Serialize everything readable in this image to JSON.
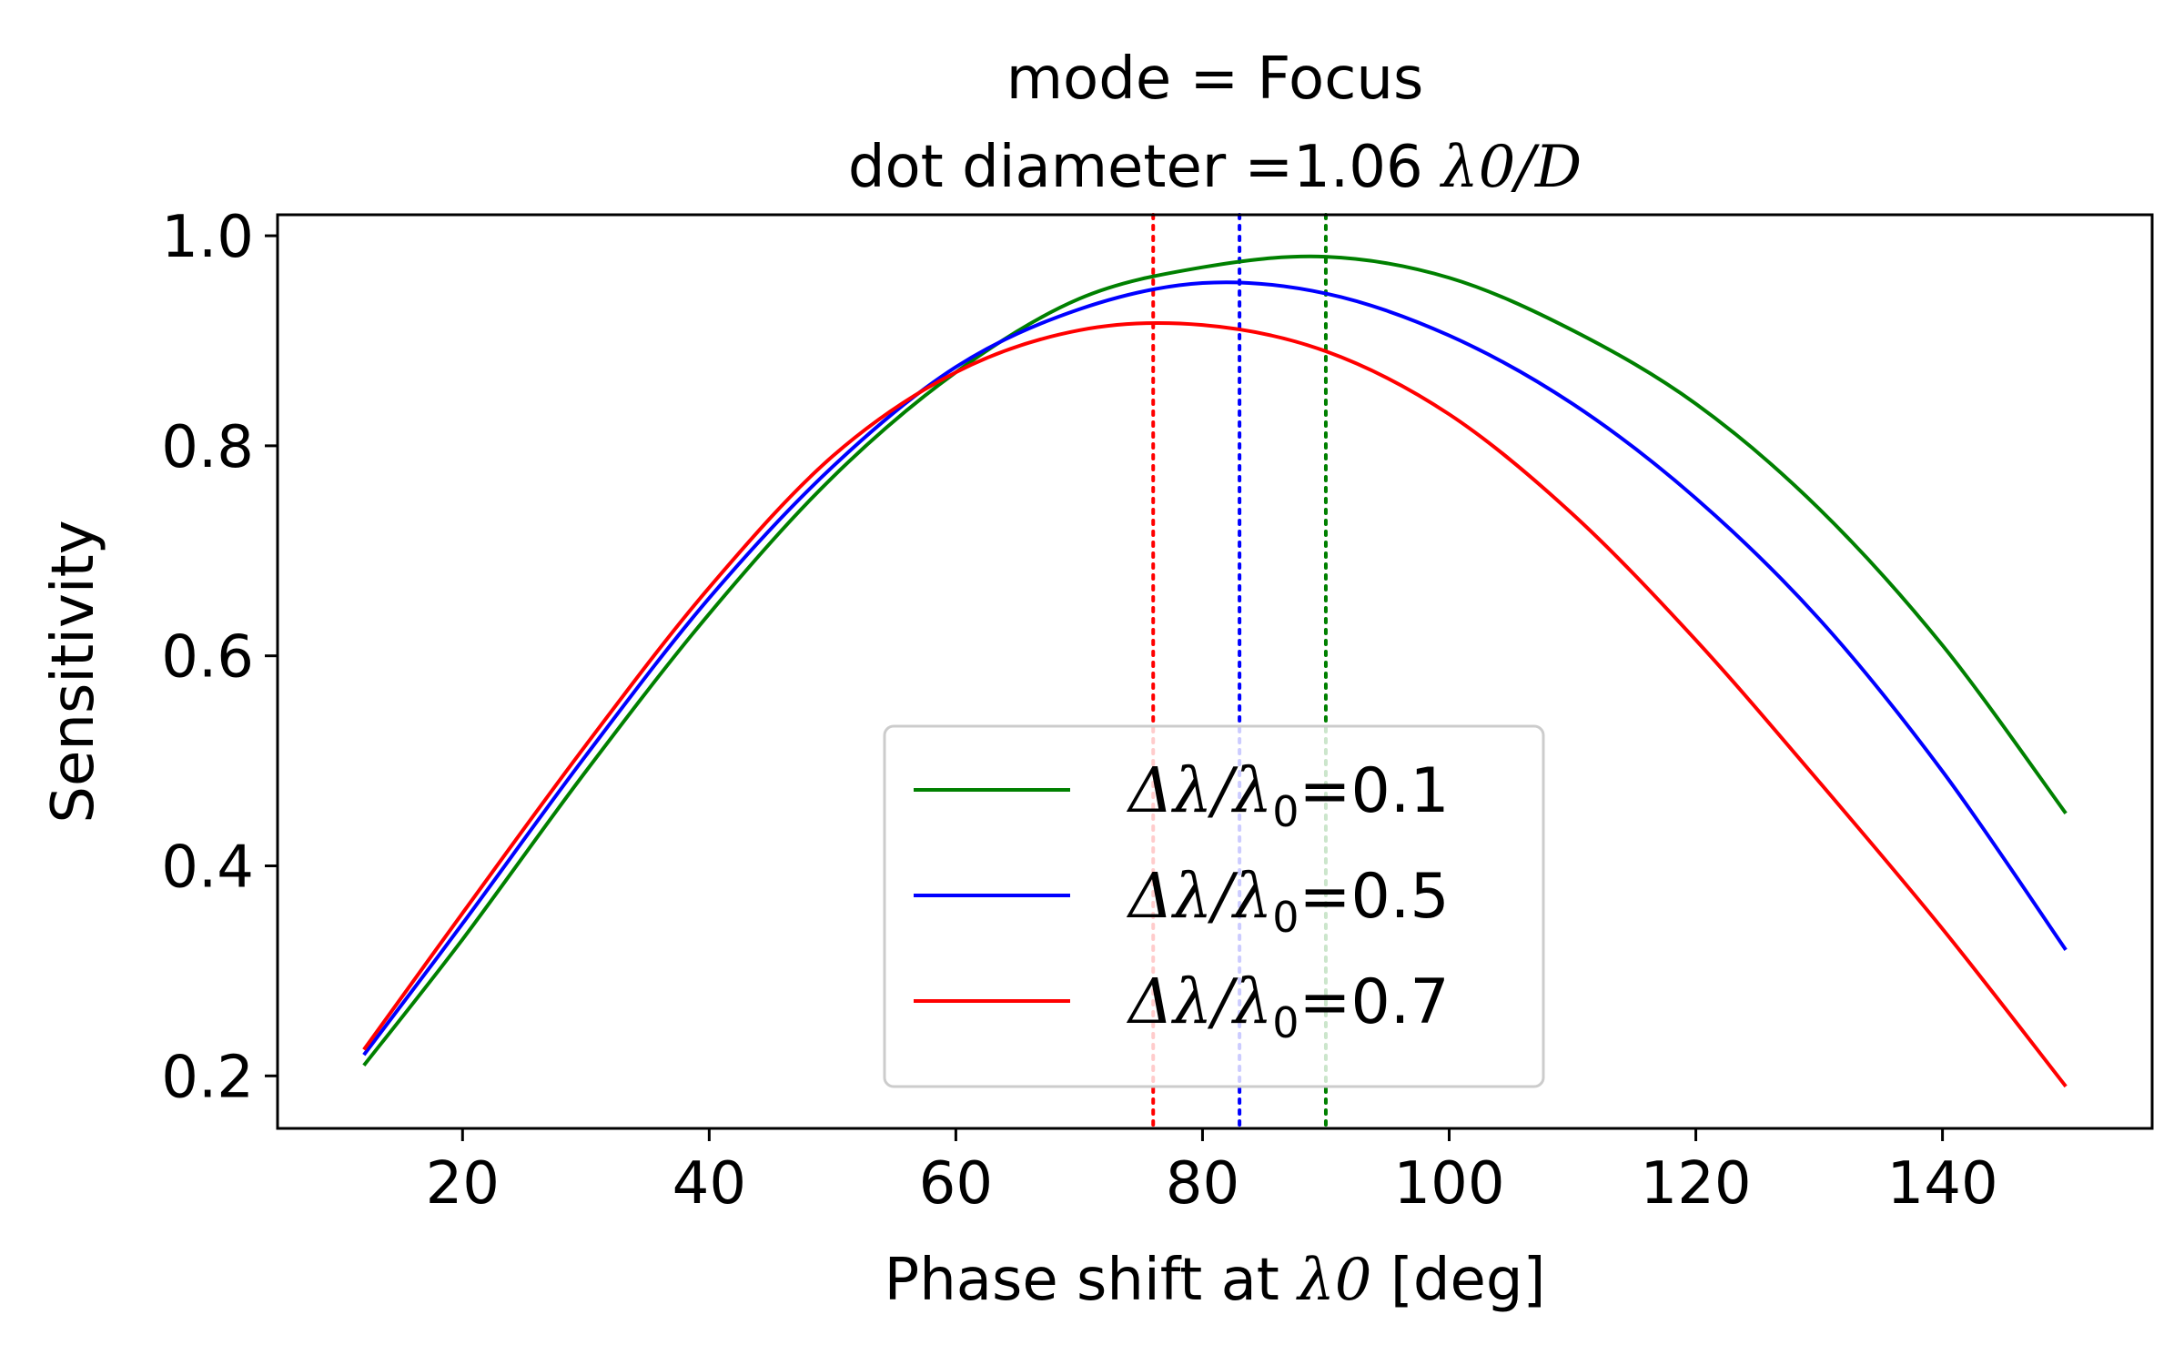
{
  "chart_data": {
    "type": "line",
    "title_line1": "mode = Focus",
    "title_line2_prefix": "dot diameter =1.06 ",
    "title_line2_math": "λ0/D",
    "xlabel_prefix": "Phase shift at ",
    "xlabel_math": "λ0",
    "xlabel_suffix": " [deg]",
    "ylabel": "Sensitivity",
    "xlim": [
      5,
      157
    ],
    "ylim": [
      0.15,
      1.02
    ],
    "xticks": [
      20,
      40,
      60,
      80,
      100,
      120,
      140
    ],
    "xtick_labels": [
      "20",
      "40",
      "60",
      "80",
      "100",
      "120",
      "140"
    ],
    "yticks": [
      0.2,
      0.4,
      0.6,
      0.8,
      1.0
    ],
    "ytick_labels": [
      "0.2",
      "0.4",
      "0.6",
      "0.8",
      "1.0"
    ],
    "grid": false,
    "legend_placement": "lower-center",
    "series": [
      {
        "name": "Δλ/λ0=0.1",
        "label_prefix": "Δλ/λ",
        "label_sub": "0",
        "label_suffix": "=0.1",
        "color": "#008000",
        "peak_x": 90,
        "x": [
          12,
          20,
          30,
          40,
          50,
          60,
          70,
          80,
          90,
          100,
          110,
          120,
          130,
          140,
          150
        ],
        "y": [
          0.21,
          0.33,
          0.49,
          0.64,
          0.77,
          0.87,
          0.94,
          0.97,
          0.98,
          0.96,
          0.91,
          0.84,
          0.74,
          0.61,
          0.45
        ]
      },
      {
        "name": "Δλ/λ0=0.5",
        "label_prefix": "Δλ/λ",
        "label_sub": "0",
        "label_suffix": "=0.5",
        "color": "#0000ff",
        "peak_x": 83,
        "x": [
          12,
          20,
          30,
          40,
          50,
          60,
          70,
          80,
          90,
          100,
          110,
          120,
          130,
          140,
          150
        ],
        "y": [
          0.22,
          0.345,
          0.505,
          0.655,
          0.78,
          0.875,
          0.93,
          0.955,
          0.945,
          0.905,
          0.84,
          0.75,
          0.635,
          0.49,
          0.32
        ]
      },
      {
        "name": "Δλ/λ0=0.7",
        "label_prefix": "Δλ/λ",
        "label_sub": "0",
        "label_suffix": "=0.7",
        "color": "#ff0000",
        "peak_x": 76,
        "x": [
          12,
          20,
          30,
          40,
          50,
          60,
          70,
          80,
          90,
          100,
          110,
          120,
          130,
          140,
          150
        ],
        "y": [
          0.225,
          0.355,
          0.515,
          0.665,
          0.79,
          0.87,
          0.91,
          0.915,
          0.89,
          0.83,
          0.735,
          0.615,
          0.48,
          0.34,
          0.19
        ]
      }
    ]
  }
}
